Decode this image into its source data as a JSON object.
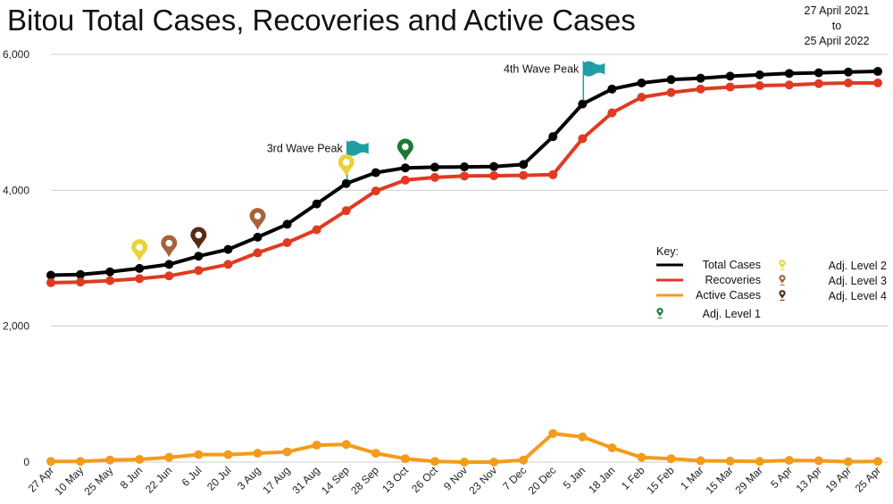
{
  "chart_data": {
    "type": "line",
    "title": "Bitou Total Cases, Recoveries and Active Cases",
    "date_range": {
      "start": "27 April 2021",
      "connector": "to",
      "end": "25 April 2022"
    },
    "categories": [
      "27 Apr",
      "10 May",
      "25 May",
      "8 Jun",
      "22 Jun",
      "6 Jul",
      "20 Jul",
      "3 Aug",
      "17 Aug",
      "31 Aug",
      "14 Sep",
      "28 Sep",
      "13 Oct",
      "26 Oct",
      "9 Nov",
      "23 Nov",
      "7 Dec",
      "20 Dec",
      "5 Jan",
      "18 Jan",
      "1 Feb",
      "15 Feb",
      "1 Mar",
      "15 Mar",
      "29 Mar",
      "5 Apr",
      "13 Apr",
      "19 Apr",
      "25 Apr"
    ],
    "y_ticks": [
      0,
      2000,
      4000,
      6000
    ],
    "y_tick_labels": [
      "0",
      "2,000",
      "4,000",
      "6,000"
    ],
    "ylim": [
      0,
      6000
    ],
    "grid": true,
    "legend_position": "right",
    "series": [
      {
        "name": "Total Cases",
        "color": "#000000",
        "values": [
          2750,
          2760,
          2800,
          2850,
          2910,
          3030,
          3130,
          3310,
          3500,
          3800,
          4100,
          4260,
          4330,
          4340,
          4345,
          4350,
          4380,
          4790,
          5270,
          5490,
          5580,
          5630,
          5650,
          5680,
          5700,
          5720,
          5730,
          5740,
          5750
        ]
      },
      {
        "name": "Recoveries",
        "color": "#e03a22",
        "values": [
          2640,
          2650,
          2670,
          2700,
          2740,
          2820,
          2910,
          3080,
          3230,
          3420,
          3700,
          3990,
          4150,
          4190,
          4210,
          4215,
          4220,
          4230,
          4760,
          5140,
          5370,
          5440,
          5490,
          5520,
          5540,
          5550,
          5570,
          5580,
          5580
        ]
      },
      {
        "name": "Active Cases",
        "color": "#f39b1c",
        "values": [
          10,
          10,
          30,
          40,
          70,
          110,
          110,
          130,
          150,
          250,
          260,
          130,
          50,
          10,
          0,
          0,
          30,
          420,
          370,
          210,
          70,
          50,
          20,
          15,
          10,
          25,
          20,
          5,
          10
        ]
      }
    ],
    "annotations": [
      {
        "text": "3rd Wave Peak",
        "category_index": 10
      },
      {
        "text": "4th Wave Peak",
        "category_index": 18
      }
    ],
    "markers": [
      {
        "category_index": 3,
        "level": "Adj. Level 2"
      },
      {
        "category_index": 4,
        "level": "Adj. Level 3"
      },
      {
        "category_index": 5,
        "level": "Adj. Level 4"
      },
      {
        "category_index": 7,
        "level": "Adj. Level 3"
      },
      {
        "category_index": 10,
        "level": "Adj. Level 2"
      },
      {
        "category_index": 12,
        "level": "Adj. Level 1"
      }
    ],
    "legend": {
      "title": "Key:",
      "levels": [
        {
          "label": "Adj. Level 1",
          "color": "#1a7a33"
        },
        {
          "label": "Adj. Level 2",
          "color": "#e8d43a"
        },
        {
          "label": "Adj. Level 3",
          "color": "#a6623a"
        },
        {
          "label": "Adj. Level 4",
          "color": "#5a2a14"
        }
      ]
    },
    "flag_color": "#1f9ea3"
  }
}
